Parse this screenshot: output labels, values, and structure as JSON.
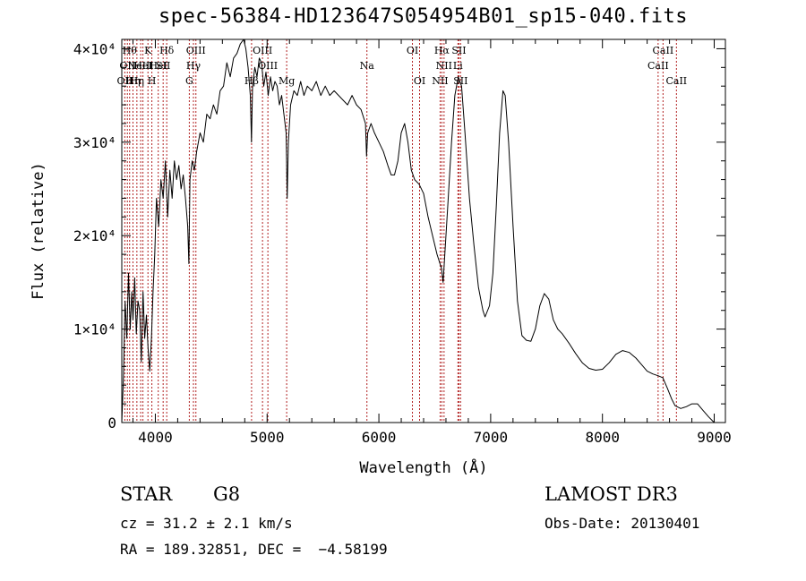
{
  "chart_data": {
    "type": "line",
    "title": "spec-56384-HD123647S054954B01_sp15-040.fits",
    "xlabel": "Wavelength (Å)",
    "ylabel": "Flux (relative)",
    "xlim": [
      3700,
      9100
    ],
    "ylim": [
      0,
      41000
    ],
    "x_ticks": [
      4000,
      5000,
      6000,
      7000,
      8000,
      9000
    ],
    "y_ticks": [
      {
        "value": 0,
        "label": "0"
      },
      {
        "value": 10000,
        "label": "1×10⁴"
      },
      {
        "value": 20000,
        "label": "2×10⁴"
      },
      {
        "value": 30000,
        "label": "3×10⁴"
      },
      {
        "value": 40000,
        "label": "4×10⁴"
      }
    ],
    "series": [
      {
        "name": "spectrum",
        "points": [
          [
            3700,
            0
          ],
          [
            3715,
            5000
          ],
          [
            3730,
            13000
          ],
          [
            3745,
            9000
          ],
          [
            3760,
            16000
          ],
          [
            3775,
            10000
          ],
          [
            3790,
            14000
          ],
          [
            3800,
            11000
          ],
          [
            3815,
            15500
          ],
          [
            3830,
            9500
          ],
          [
            3845,
            13000
          ],
          [
            3860,
            12000
          ],
          [
            3875,
            6500
          ],
          [
            3890,
            14000
          ],
          [
            3905,
            9000
          ],
          [
            3920,
            11500
          ],
          [
            3935,
            8000
          ],
          [
            3950,
            5500
          ],
          [
            3965,
            9000
          ],
          [
            3980,
            14000
          ],
          [
            3995,
            18000
          ],
          [
            4010,
            24000
          ],
          [
            4030,
            21000
          ],
          [
            4050,
            26000
          ],
          [
            4070,
            24000
          ],
          [
            4090,
            28000
          ],
          [
            4110,
            22000
          ],
          [
            4130,
            27000
          ],
          [
            4150,
            24000
          ],
          [
            4170,
            28000
          ],
          [
            4190,
            26000
          ],
          [
            4210,
            27500
          ],
          [
            4230,
            25000
          ],
          [
            4250,
            26500
          ],
          [
            4270,
            24000
          ],
          [
            4290,
            21000
          ],
          [
            4300,
            17000
          ],
          [
            4310,
            26000
          ],
          [
            4330,
            28000
          ],
          [
            4350,
            27000
          ],
          [
            4370,
            29000
          ],
          [
            4400,
            31000
          ],
          [
            4430,
            30000
          ],
          [
            4460,
            33000
          ],
          [
            4490,
            32500
          ],
          [
            4520,
            34000
          ],
          [
            4550,
            33000
          ],
          [
            4580,
            35500
          ],
          [
            4610,
            36000
          ],
          [
            4640,
            38500
          ],
          [
            4670,
            37000
          ],
          [
            4700,
            39000
          ],
          [
            4730,
            39500
          ],
          [
            4760,
            40500
          ],
          [
            4790,
            41000
          ],
          [
            4810,
            40000
          ],
          [
            4830,
            38000
          ],
          [
            4850,
            35000
          ],
          [
            4860,
            30000
          ],
          [
            4870,
            36000
          ],
          [
            4890,
            38000
          ],
          [
            4910,
            37000
          ],
          [
            4930,
            39000
          ],
          [
            4950,
            38500
          ],
          [
            4970,
            36000
          ],
          [
            4990,
            37500
          ],
          [
            5010,
            35000
          ],
          [
            5030,
            37000
          ],
          [
            5050,
            35500
          ],
          [
            5070,
            36500
          ],
          [
            5090,
            36000
          ],
          [
            5110,
            34000
          ],
          [
            5130,
            35000
          ],
          [
            5150,
            33000
          ],
          [
            5170,
            31000
          ],
          [
            5180,
            24000
          ],
          [
            5190,
            30000
          ],
          [
            5210,
            34000
          ],
          [
            5240,
            35500
          ],
          [
            5270,
            35000
          ],
          [
            5300,
            36500
          ],
          [
            5330,
            35000
          ],
          [
            5360,
            36000
          ],
          [
            5400,
            35500
          ],
          [
            5440,
            36500
          ],
          [
            5480,
            35000
          ],
          [
            5520,
            36000
          ],
          [
            5560,
            35000
          ],
          [
            5600,
            35500
          ],
          [
            5640,
            35000
          ],
          [
            5680,
            34500
          ],
          [
            5720,
            34000
          ],
          [
            5760,
            35000
          ],
          [
            5800,
            34000
          ],
          [
            5840,
            33500
          ],
          [
            5880,
            32000
          ],
          [
            5890,
            28500
          ],
          [
            5900,
            31000
          ],
          [
            5930,
            32000
          ],
          [
            5960,
            31000
          ],
          [
            6000,
            30000
          ],
          [
            6040,
            29000
          ],
          [
            6080,
            27500
          ],
          [
            6110,
            26500
          ],
          [
            6140,
            26500
          ],
          [
            6170,
            28000
          ],
          [
            6200,
            31000
          ],
          [
            6230,
            32000
          ],
          [
            6260,
            30000
          ],
          [
            6290,
            27000
          ],
          [
            6320,
            26000
          ],
          [
            6360,
            25500
          ],
          [
            6400,
            24500
          ],
          [
            6440,
            22000
          ],
          [
            6480,
            20000
          ],
          [
            6520,
            18000
          ],
          [
            6560,
            16500
          ],
          [
            6575,
            15000
          ],
          [
            6590,
            18000
          ],
          [
            6620,
            24000
          ],
          [
            6650,
            30000
          ],
          [
            6680,
            35000
          ],
          [
            6710,
            37000
          ],
          [
            6740,
            36000
          ],
          [
            6770,
            31000
          ],
          [
            6810,
            24000
          ],
          [
            6850,
            19000
          ],
          [
            6890,
            14500
          ],
          [
            6930,
            12000
          ],
          [
            6950,
            11300
          ],
          [
            6990,
            12500
          ],
          [
            7020,
            16000
          ],
          [
            7050,
            23000
          ],
          [
            7080,
            31000
          ],
          [
            7110,
            35500
          ],
          [
            7130,
            35000
          ],
          [
            7160,
            30000
          ],
          [
            7200,
            21000
          ],
          [
            7240,
            13000
          ],
          [
            7280,
            9300
          ],
          [
            7320,
            8800
          ],
          [
            7360,
            8700
          ],
          [
            7400,
            10000
          ],
          [
            7440,
            12500
          ],
          [
            7480,
            13800
          ],
          [
            7520,
            13200
          ],
          [
            7560,
            11000
          ],
          [
            7600,
            10000
          ],
          [
            7640,
            9500
          ],
          [
            7700,
            8500
          ],
          [
            7760,
            7400
          ],
          [
            7820,
            6400
          ],
          [
            7880,
            5800
          ],
          [
            7940,
            5600
          ],
          [
            8000,
            5700
          ],
          [
            8060,
            6400
          ],
          [
            8120,
            7300
          ],
          [
            8180,
            7700
          ],
          [
            8240,
            7500
          ],
          [
            8300,
            6900
          ],
          [
            8350,
            6200
          ],
          [
            8400,
            5500
          ],
          [
            8450,
            5200
          ],
          [
            8500,
            5000
          ],
          [
            8540,
            4800
          ],
          [
            8580,
            3700
          ],
          [
            8620,
            2500
          ],
          [
            8650,
            1800
          ],
          [
            8700,
            1500
          ],
          [
            8750,
            1700
          ],
          [
            8800,
            2000
          ],
          [
            8850,
            2000
          ],
          [
            8900,
            1300
          ],
          [
            8950,
            600
          ],
          [
            9000,
            0
          ]
        ]
      }
    ],
    "lines": [
      {
        "wl": 3727,
        "label": "OII",
        "row": 2
      },
      {
        "wl": 3750,
        "label": "OII",
        "row": 1
      },
      {
        "wl": 3770,
        "label": "Hθ",
        "row": 0
      },
      {
        "wl": 3800,
        "label": "Hη",
        "row": 2
      },
      {
        "wl": 3835,
        "label": "Hη",
        "row": 2
      },
      {
        "wl": 3869,
        "label": "NeIII",
        "row": 1
      },
      {
        "wl": 3889,
        "label": "HeI",
        "row": 1
      },
      {
        "wl": 3934,
        "label": "K",
        "row": 0
      },
      {
        "wl": 3969,
        "label": "H",
        "row": 2
      },
      {
        "wl": 4026,
        "label": "HeI",
        "row": 1
      },
      {
        "wl": 4070,
        "label": "SII",
        "row": 1
      },
      {
        "wl": 4102,
        "label": "Hδ",
        "row": 0
      },
      {
        "wl": 4304,
        "label": "G",
        "row": 2
      },
      {
        "wl": 4341,
        "label": "Hγ",
        "row": 1
      },
      {
        "wl": 4363,
        "label": "OIII",
        "row": 0
      },
      {
        "wl": 4861,
        "label": "Hβ",
        "row": 2
      },
      {
        "wl": 4959,
        "label": "OIII",
        "row": 0
      },
      {
        "wl": 5007,
        "label": "OIII",
        "row": 1
      },
      {
        "wl": 5175,
        "label": "Mg",
        "row": 2
      },
      {
        "wl": 5893,
        "label": "Na",
        "row": 1
      },
      {
        "wl": 6300,
        "label": "OI",
        "row": 0
      },
      {
        "wl": 6364,
        "label": "OI",
        "row": 2
      },
      {
        "wl": 6548,
        "label": "NII",
        "row": 2
      },
      {
        "wl": 6563,
        "label": "Hα",
        "row": 0
      },
      {
        "wl": 6583,
        "label": "NII",
        "row": 1
      },
      {
        "wl": 6707,
        "label": "Li",
        "row": 1
      },
      {
        "wl": 6716,
        "label": "SII",
        "row": 0
      },
      {
        "wl": 6731,
        "label": "SII",
        "row": 2
      },
      {
        "wl": 8498,
        "label": "CaII",
        "row": 1
      },
      {
        "wl": 8542,
        "label": "CaII",
        "row": 0
      },
      {
        "wl": 8662,
        "label": "CaII",
        "row": 2
      }
    ]
  },
  "info": {
    "class": "STAR",
    "subclass": "G8",
    "cz": "cz = 31.2 ± 2.1 km/s",
    "radec": "RA = 189.32851, DEC =  −4.58199",
    "survey": "LAMOST DR3",
    "obsdate": "Obs-Date: 20130401"
  }
}
